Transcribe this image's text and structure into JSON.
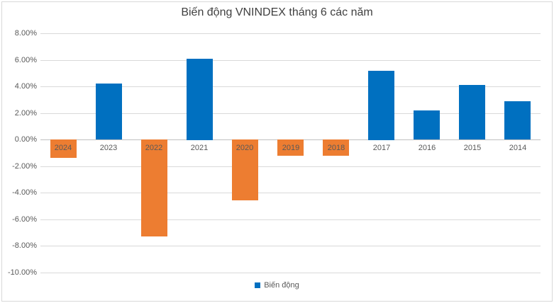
{
  "chart_data": {
    "type": "bar",
    "title": "Biến động VNINDEX tháng 6 các năm",
    "series_name": "Biến động",
    "categories": [
      "2024",
      "2023",
      "2022",
      "2021",
      "2020",
      "2019",
      "2018",
      "2017",
      "2016",
      "2015",
      "2014"
    ],
    "values": [
      -1.4,
      4.2,
      -7.3,
      6.1,
      -4.6,
      -1.2,
      -1.2,
      5.2,
      2.2,
      4.1,
      2.9
    ],
    "unit": "%",
    "ylim": [
      -10,
      8
    ],
    "yticks": [
      8,
      6,
      4,
      2,
      0,
      -2,
      -4,
      -6,
      -8,
      -10
    ],
    "ytick_labels": [
      "8.00%",
      "6.00%",
      "4.00%",
      "2.00%",
      "0.00%",
      "-2.00%",
      "-4.00%",
      "-6.00%",
      "-8.00%",
      "-10.00%"
    ],
    "xlabel": "",
    "ylabel": "",
    "grid": true,
    "legend_position": "bottom",
    "positive_color": "#0070C0",
    "negative_color": "#ED7D31",
    "gridline_color": "#D9D9D9",
    "axis_line_color": "#BFBFBF",
    "text_color": "#595959",
    "title_color": "#404040"
  }
}
